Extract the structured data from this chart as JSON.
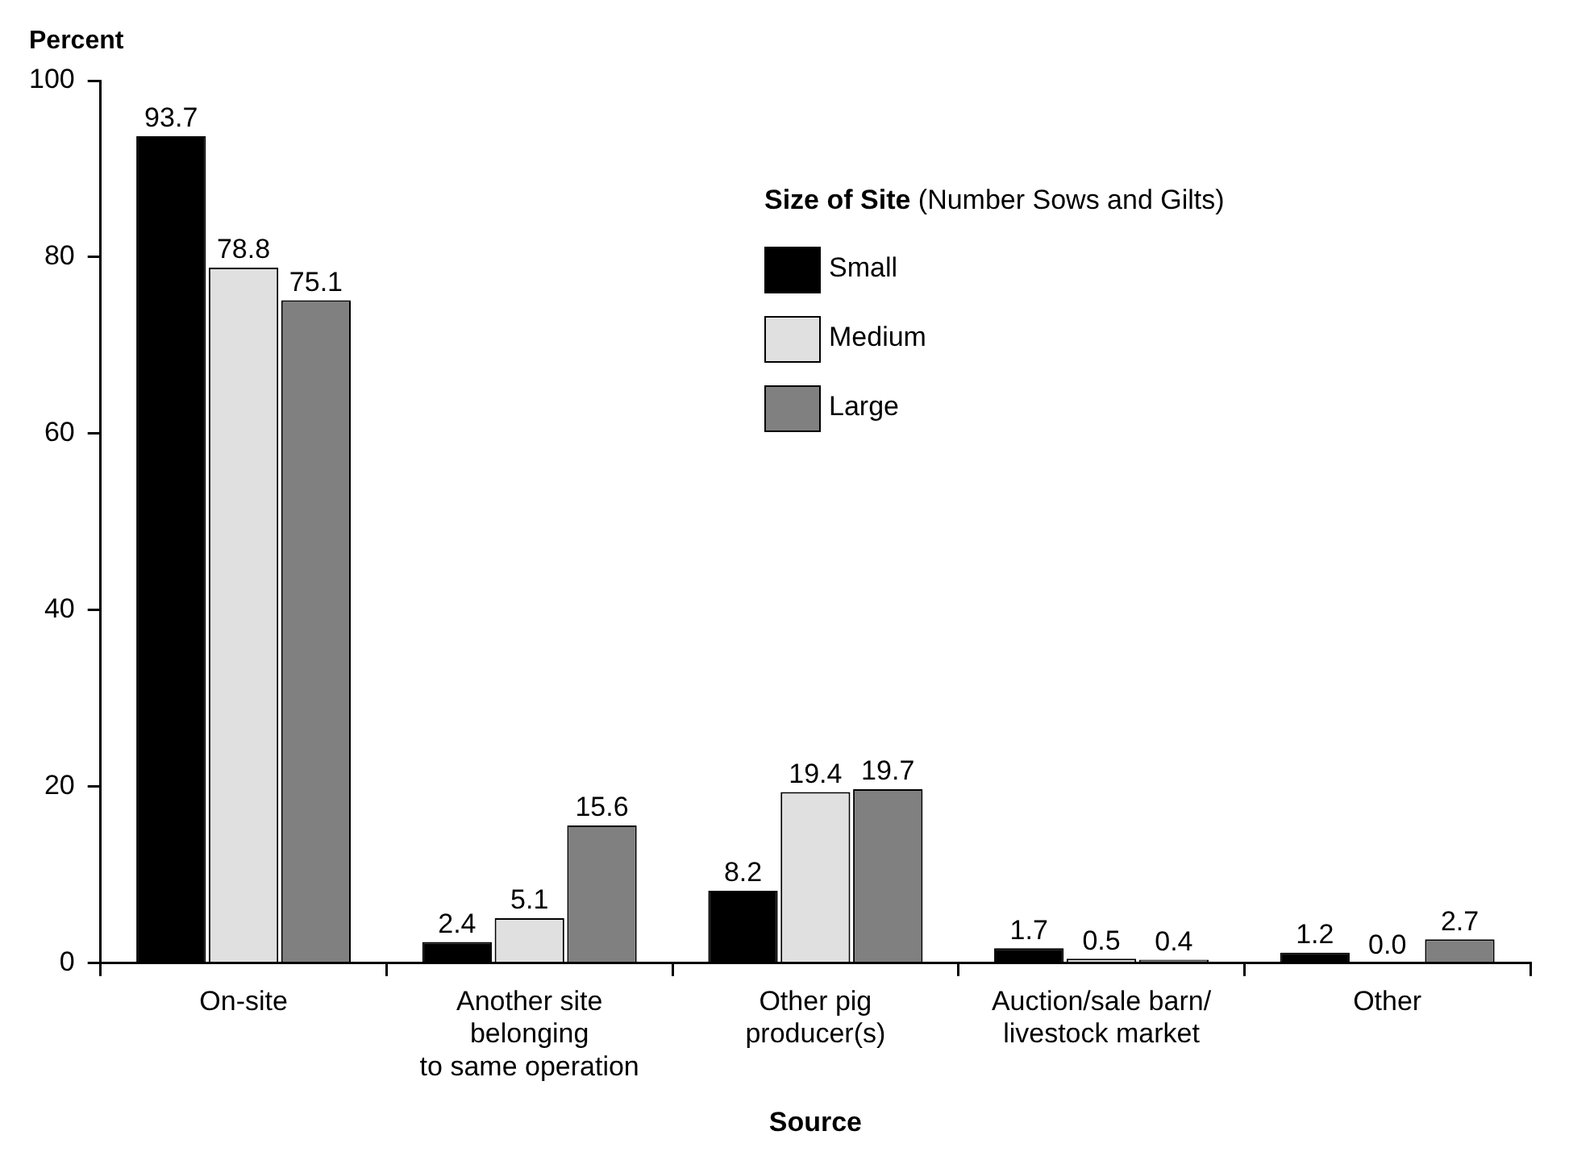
{
  "chart_data": {
    "type": "bar",
    "ylabel": "Percent",
    "xlabel": "Source",
    "legend_title": "Size of Site (Number Sows and Gilts)",
    "legend": "top right",
    "grid": false,
    "categories": [
      "On-site",
      "Another site\nbelonging\nto same operation",
      "Other pig\nproducer(s)",
      "Auction/sale barn/\nlivestock market",
      "Other"
    ],
    "ylim": [
      0,
      100
    ],
    "yticks": [
      0,
      20,
      40,
      60,
      80,
      100
    ],
    "series": [
      {
        "name": "Small",
        "color": "#000000",
        "values": [
          93.7,
          2.4,
          8.2,
          1.7,
          1.2
        ],
        "value_labels": [
          "93.7",
          "2.4",
          "8.2",
          "1.7",
          "1.2"
        ]
      },
      {
        "name": "Medium",
        "color": "#e0e0e0",
        "values": [
          78.8,
          5.1,
          19.4,
          0.5,
          0.0
        ],
        "value_labels": [
          "78.8",
          "5.1",
          "19.4",
          "0.5",
          "0.0"
        ]
      },
      {
        "name": "Large",
        "color": "#808080",
        "values": [
          75.1,
          15.6,
          19.7,
          0.4,
          2.7
        ],
        "value_labels": [
          "75.1",
          "15.6",
          "19.7",
          "0.4",
          "2.7"
        ]
      }
    ]
  }
}
